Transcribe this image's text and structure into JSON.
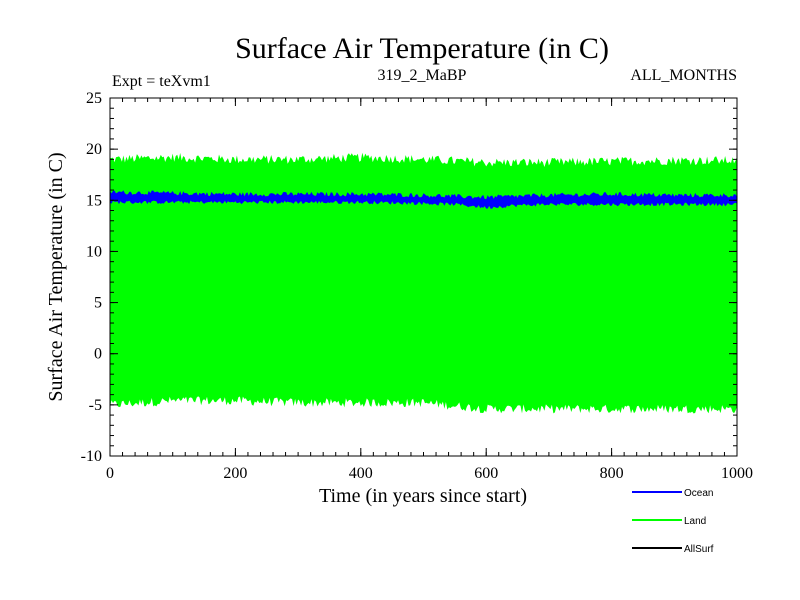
{
  "chart_data": {
    "type": "line",
    "title": "Surface Air Temperature (in C)",
    "subtitle_left": "Expt = teXvm1",
    "subtitle_center": "319_2_MaBP",
    "subtitle_right": "ALL_MONTHS",
    "xlabel": "Time (in years since start)",
    "ylabel": "Surface Air Temperature (in C)",
    "xlim": [
      0,
      1000
    ],
    "ylim": [
      -10,
      25
    ],
    "xticks": [
      "0",
      "200",
      "400",
      "600",
      "800",
      "1000"
    ],
    "yticks": [
      "-10",
      "-5",
      "0",
      "5",
      "10",
      "15",
      "20",
      "25"
    ],
    "legend_position": "bottom-right",
    "series": [
      {
        "name": "Land",
        "color": "#00ff00",
        "description": "monthly values oscillating between envelopes",
        "x": [
          0,
          100,
          200,
          300,
          400,
          500,
          600,
          700,
          800,
          900,
          1000
        ],
        "upper": [
          19.0,
          19.2,
          19.0,
          19.0,
          19.2,
          19.0,
          18.7,
          18.7,
          18.8,
          18.9,
          18.9
        ],
        "lower": [
          -5.0,
          -4.6,
          -4.6,
          -4.8,
          -4.8,
          -4.8,
          -5.4,
          -5.4,
          -5.4,
          -5.4,
          -5.4
        ]
      },
      {
        "name": "Ocean",
        "color": "#0000ff",
        "x": [
          0,
          100,
          200,
          300,
          400,
          500,
          550,
          600,
          650,
          700,
          800,
          900,
          1000
        ],
        "upper": [
          15.8,
          15.7,
          15.6,
          15.6,
          15.6,
          15.5,
          15.4,
          15.3,
          15.4,
          15.5,
          15.6,
          15.5,
          15.5
        ],
        "lower": [
          14.8,
          14.8,
          14.8,
          14.8,
          14.8,
          14.7,
          14.6,
          14.3,
          14.5,
          14.6,
          14.6,
          14.6,
          14.6
        ]
      },
      {
        "name": "AllSurf",
        "color": "#000000",
        "x": [],
        "upper": [],
        "lower": []
      }
    ]
  }
}
